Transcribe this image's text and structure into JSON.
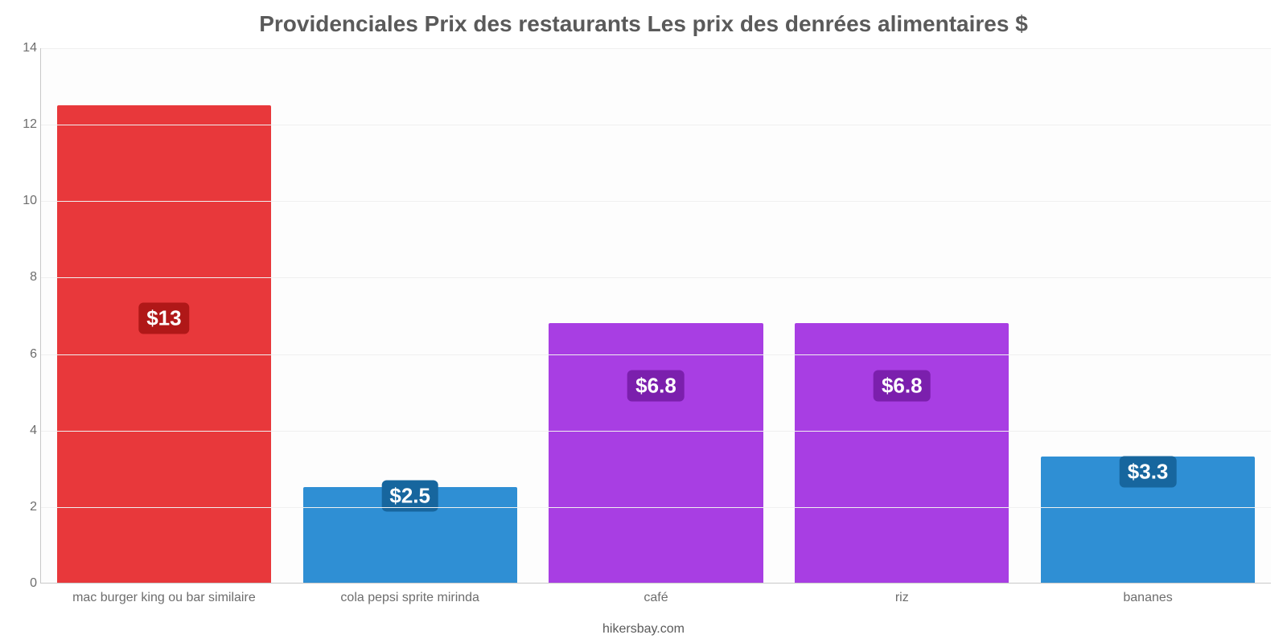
{
  "chart": {
    "type": "bar",
    "title": "Providenciales Prix des restaurants Les prix des denrées alimentaires $",
    "title_fontsize": 28,
    "title_color": "#5a5a5a",
    "footer": "hikersbay.com",
    "footer_color": "#5a5a5a",
    "background_color": "#ffffff",
    "plot_background_color": "#fdfdfd",
    "grid_color": "#f0f0f0",
    "axis_color": "#c8c8c8",
    "ytick_color": "#6d6d6d",
    "xlabel_color": "#6d6d6d",
    "ylim": [
      0,
      14
    ],
    "ytick_step": 2,
    "yticks": [
      0,
      2,
      4,
      6,
      8,
      10,
      12,
      14
    ],
    "bar_width": 0.87,
    "label_fontsize": 26,
    "tick_fontsize": 16,
    "categories": [
      "mac burger king ou bar similaire",
      "cola pepsi sprite mirinda",
      "café",
      "riz",
      "bananes"
    ],
    "values": [
      12.5,
      2.5,
      6.8,
      6.8,
      3.3
    ],
    "display_labels": [
      "$13",
      "$2.5",
      "$6.8",
      "$6.8",
      "$3.3"
    ],
    "bar_colors": [
      "#e8383b",
      "#2f8fd4",
      "#a83ee3",
      "#a83ee3",
      "#2f8fd4"
    ],
    "label_bg_colors": [
      "#b01818",
      "#17669e",
      "#7b1fad",
      "#7b1fad",
      "#17669e"
    ]
  }
}
